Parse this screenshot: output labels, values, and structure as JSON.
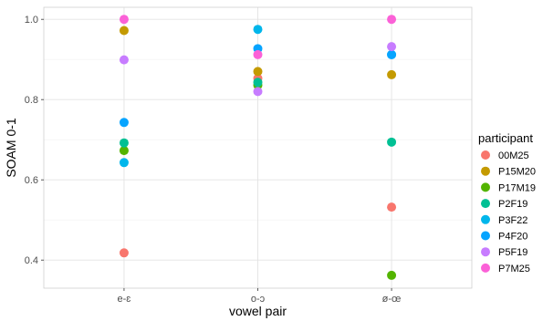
{
  "chart_data": {
    "type": "scatter",
    "xlabel": "vowel pair",
    "ylabel": "SOAM 0-1",
    "categories": [
      "e-ɛ",
      "o-ɔ",
      "ø-œ"
    ],
    "ylim": [
      0.33,
      1.03
    ],
    "yticks": [
      0.4,
      0.6,
      0.8,
      1.0
    ],
    "ytick_labels": [
      "0.4",
      "0.6",
      "0.8",
      "1.0"
    ],
    "grid": true,
    "legend_title": "participant",
    "legend_position": "right",
    "series": [
      {
        "name": "00M25",
        "color": "#F8766D",
        "values": [
          0.418,
          0.853,
          0.532
        ]
      },
      {
        "name": "P15M20",
        "color": "#C49A00",
        "values": [
          0.972,
          0.87,
          0.862
        ]
      },
      {
        "name": "P17M19",
        "color": "#53B400",
        "values": [
          0.673,
          0.836,
          0.362
        ]
      },
      {
        "name": "P2F19",
        "color": "#00C094",
        "values": [
          0.692,
          0.843,
          0.694
        ]
      },
      {
        "name": "P3F22",
        "color": "#00B6EB",
        "values": [
          0.643,
          0.975,
          0.912
        ]
      },
      {
        "name": "P4F20",
        "color": "#06A4FF",
        "values": [
          0.743,
          0.927,
          0.912
        ]
      },
      {
        "name": "P5F19",
        "color": "#C77CFF",
        "values": [
          0.899,
          0.82,
          0.932
        ]
      },
      {
        "name": "P7M25",
        "color": "#FB61D7",
        "values": [
          1.0,
          0.912,
          1.0
        ]
      }
    ]
  }
}
